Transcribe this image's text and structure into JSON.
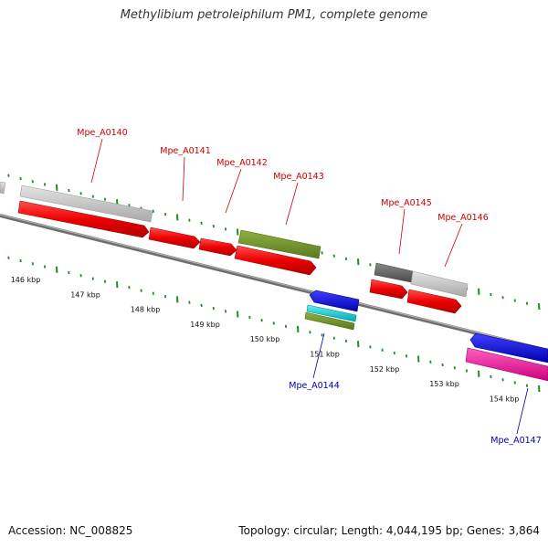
{
  "title": "Methylibium petroleiphilum PM1, complete genome",
  "footer": {
    "accession": "Accession: NC_008825",
    "summary": "Topology: circular; Length: 4,044,195 bp; Genes: 3,864"
  },
  "colors": {
    "forward_label": "#cc0000",
    "reverse_label": "#0000aa",
    "tick": "#228b22",
    "backbone": "#777777"
  },
  "scale_labels": [
    "146 kbp",
    "147 kbp",
    "148 kbp",
    "149 kbp",
    "150 kbp",
    "151 kbp",
    "152 kbp",
    "153 kbp",
    "154 kbp"
  ],
  "gene_labels": [
    {
      "text": "Mpe_A0140",
      "strand": "forward"
    },
    {
      "text": "Mpe_A0141",
      "strand": "forward"
    },
    {
      "text": "Mpe_A0142",
      "strand": "forward"
    },
    {
      "text": "Mpe_A0143",
      "strand": "forward"
    },
    {
      "text": "Mpe_A0145",
      "strand": "forward"
    },
    {
      "text": "Mpe_A0146",
      "strand": "forward"
    },
    {
      "text": "Mpe_A0144",
      "strand": "reverse"
    },
    {
      "text": "Mpe_A0147",
      "strand": "reverse"
    }
  ]
}
